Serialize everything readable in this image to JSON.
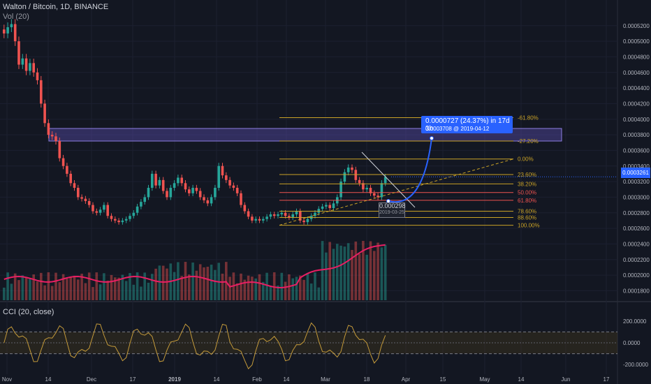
{
  "header": {
    "symbol_line": "Walton / Bitcoin, 1D, BINANCE",
    "volume_line": "Vol (20)"
  },
  "cci_header": "CCI (20, close)",
  "current_price": "0.0003261",
  "tooltip": {
    "line1": "0.0000727 (24.37%) in 17d 3h",
    "line2": "0.0003708 @ 2019-04-12"
  },
  "point_label": {
    "price": "0.000298",
    "date": "2019-03-25"
  },
  "colors": {
    "up": "#26a69a",
    "down": "#ef5350",
    "fib_gold": "#c9a227",
    "fib_red": "#ef5350",
    "vol_ma": "#e91e63",
    "accent": "#2962ff",
    "zone": "#6a5acd"
  },
  "chart_data": [
    {
      "type": "candlestick",
      "title": "Walton / Bitcoin, 1D, BINANCE",
      "y_axis": {
        "ticks": [
          "0.0005200",
          "0.0005000",
          "0.0004800",
          "0.0004600",
          "0.0004400",
          "0.0004200",
          "0.0004000",
          "0.0003800",
          "0.0003600",
          "0.0003400",
          "0.0003200",
          "0.0003000",
          "0.0002800",
          "0.0002600",
          "0.0002400",
          "0.0002200",
          "0.0002000",
          "0.0001800"
        ],
        "range": [
          0.000175,
          0.000535
        ]
      },
      "x_axis": {
        "ticks": [
          "Nov",
          "14",
          "Dec",
          "17",
          "2019",
          "14",
          "Feb",
          "14",
          "Mar",
          "18",
          "Apr",
          "15",
          "May",
          "14",
          "Jun",
          "17"
        ]
      },
      "close_series": [
        0.00051,
        0.000518,
        0.000522,
        0.0005,
        0.00047,
        0.000478,
        0.000462,
        0.000472,
        0.00046,
        0.00045,
        0.00042,
        0.000395,
        0.00038,
        0.000378,
        0.000372,
        0.00035,
        0.00034,
        0.00033,
        0.000318,
        0.000312,
        0.0003,
        0.000298,
        0.000295,
        0.00029,
        0.000282,
        0.00028,
        0.000284,
        0.00029,
        0.000276,
        0.000272,
        0.00027,
        0.000268,
        0.00027,
        0.000272,
        0.000276,
        0.00028,
        0.000288,
        0.000294,
        0.0003,
        0.000312,
        0.00033,
        0.000315,
        0.000322,
        0.000308,
        0.0003,
        0.000312,
        0.000318,
        0.000325,
        0.000318,
        0.00031,
        0.000305,
        0.000312,
        0.000308,
        0.0003,
        0.000296,
        0.000292,
        0.0003,
        0.000312,
        0.00034,
        0.000328,
        0.000322,
        0.000315,
        0.000312,
        0.000305,
        0.00029,
        0.000282,
        0.000275,
        0.00027,
        0.000272,
        0.00027,
        0.000272,
        0.000275,
        0.000278,
        0.000276,
        0.000278,
        0.00028,
        0.000276,
        0.000274,
        0.000278,
        0.000282,
        0.00027,
        0.000268,
        0.000272,
        0.000276,
        0.00028,
        0.000285,
        0.000288,
        0.00029,
        0.000286,
        0.000292,
        0.0003,
        0.00032,
        0.000332,
        0.000338,
        0.000335,
        0.000322,
        0.000318,
        0.00031,
        0.000312,
        0.000305,
        0.000302,
        0.0003,
        0.000318,
        0.000326
      ]
    },
    {
      "type": "bar",
      "title": "Vol (20)",
      "series": [
        {
          "name": "Vol (20)"
        }
      ]
    },
    {
      "type": "line",
      "title": "CCI (20, close)",
      "y_axis": {
        "ticks": [
          "200.0000",
          "0.0000",
          "-200.0000"
        ],
        "range": [
          -250,
          250
        ]
      }
    }
  ],
  "fib_levels": [
    {
      "label": "-61.80%",
      "price": 0.000402
    },
    {
      "label": "-27.20%",
      "price": 0.000372
    },
    {
      "label": "0.00%",
      "price": 0.000349
    },
    {
      "label": "23.60%",
      "price": 0.000329
    },
    {
      "label": "38.20%",
      "price": 0.000317
    },
    {
      "label": "50.00%",
      "price": 0.000306
    },
    {
      "label": "61.80%",
      "price": 0.000296
    },
    {
      "label": "78.60%",
      "price": 0.000282
    },
    {
      "label": "88.60%",
      "price": 0.000274
    },
    {
      "label": "100.00%",
      "price": 0.000264
    }
  ]
}
